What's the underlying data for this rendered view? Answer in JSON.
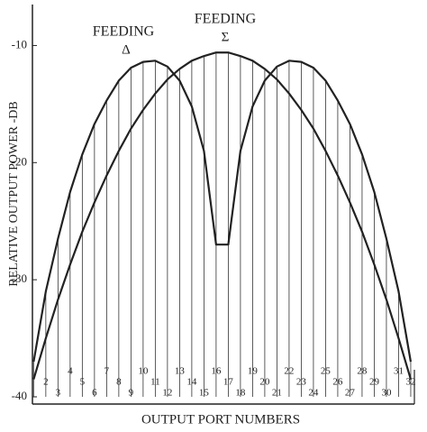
{
  "chart_data": {
    "type": "line",
    "x_label": "OUTPUT PORT NUMBERS",
    "y_label": "RELATIVE   OUTPUT   POWER   -DB",
    "annotations": [
      {
        "text": "FEEDING",
        "symbol": "Δ"
      },
      {
        "text": "FEEDING",
        "symbol": "Σ"
      }
    ],
    "x": [
      1,
      2,
      3,
      4,
      5,
      6,
      7,
      8,
      9,
      10,
      11,
      12,
      13,
      14,
      15,
      16,
      17,
      18,
      19,
      20,
      21,
      22,
      23,
      24,
      25,
      26,
      27,
      28,
      29,
      30,
      31,
      32
    ],
    "xticks": [
      2,
      3,
      4,
      5,
      6,
      7,
      8,
      9,
      10,
      11,
      12,
      13,
      14,
      15,
      16,
      17,
      18,
      19,
      20,
      21,
      22,
      23,
      24,
      25,
      26,
      27,
      28,
      29,
      30,
      31,
      32
    ],
    "xlim": [
      0.9,
      32.3
    ],
    "ylim": [
      -40,
      -6.5
    ],
    "yticks": [
      -10,
      -20,
      -30,
      -40
    ],
    "series": [
      {
        "name": "FEEDING Δ",
        "color": "#222222",
        "values": [
          -37,
          -31,
          -26.5,
          -22.5,
          -19.3,
          -16.7,
          -14.7,
          -13,
          -11.9,
          -11.4,
          -11.3,
          -11.8,
          -13,
          -15.2,
          -19,
          -27,
          -27,
          -19,
          -15.2,
          -13,
          -11.8,
          -11.3,
          -11.4,
          -11.9,
          -13,
          -14.7,
          -16.7,
          -19.3,
          -22.5,
          -26.5,
          -31,
          -37
        ]
      },
      {
        "name": "FEEDING Σ",
        "color": "#222222",
        "values": [
          -38.5,
          -35,
          -31.7,
          -28.7,
          -25.9,
          -23.4,
          -21.1,
          -19,
          -17.1,
          -15.5,
          -14.1,
          -12.9,
          -12,
          -11.3,
          -10.9,
          -10.6,
          -10.6,
          -10.9,
          -11.3,
          -12,
          -12.9,
          -14.1,
          -15.5,
          -17.1,
          -19,
          -21.1,
          -23.4,
          -25.9,
          -28.7,
          -31.7,
          -35,
          -38.5
        ]
      }
    ]
  }
}
